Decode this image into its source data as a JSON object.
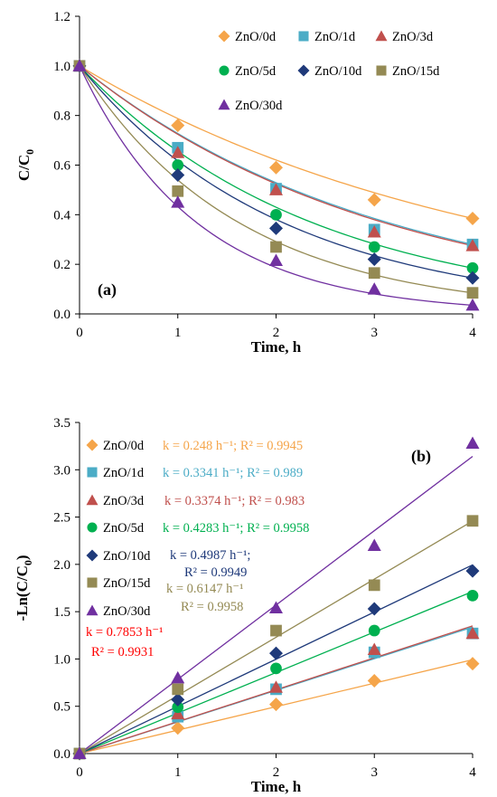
{
  "chart_data": [
    {
      "type": "scatter",
      "panel_label": "(a)",
      "xlabel": "Time, h",
      "ylabel": "C/C",
      "ylabel_sub": "0",
      "xlim": [
        0,
        4
      ],
      "ylim": [
        0,
        1.2
      ],
      "xticks": [
        "0",
        "1",
        "2",
        "3",
        "4"
      ],
      "yticks": [
        "0.0",
        "0.2",
        "0.4",
        "0.6",
        "0.8",
        "1.0",
        "1.2"
      ],
      "legend": "top-right",
      "series": [
        {
          "name": "ZnO/0d",
          "color": "#f5a54a",
          "marker": "diamond",
          "x": [
            0,
            1,
            2,
            3,
            4
          ],
          "y": [
            1.0,
            0.76,
            0.59,
            0.46,
            0.385
          ]
        },
        {
          "name": "ZnO/1d",
          "color": "#4bacc6",
          "marker": "square",
          "x": [
            0,
            1,
            2,
            3,
            4
          ],
          "y": [
            1.0,
            0.67,
            0.505,
            0.34,
            0.28
          ]
        },
        {
          "name": "ZnO/3d",
          "color": "#c0504d",
          "marker": "triangle",
          "x": [
            0,
            1,
            2,
            3,
            4
          ],
          "y": [
            1.0,
            0.65,
            0.5,
            0.33,
            0.275
          ]
        },
        {
          "name": "ZnO/5d",
          "color": "#00b050",
          "marker": "circle",
          "x": [
            0,
            1,
            2,
            3,
            4
          ],
          "y": [
            1.0,
            0.6,
            0.4,
            0.27,
            0.185
          ]
        },
        {
          "name": "ZnO/10d",
          "color": "#1f3a7a",
          "marker": "diamond",
          "x": [
            0,
            1,
            2,
            3,
            4
          ],
          "y": [
            1.0,
            0.56,
            0.345,
            0.22,
            0.145
          ]
        },
        {
          "name": "ZnO/15d",
          "color": "#948a54",
          "marker": "square",
          "x": [
            0,
            1,
            2,
            3,
            4
          ],
          "y": [
            1.0,
            0.495,
            0.27,
            0.165,
            0.085
          ]
        },
        {
          "name": "ZnO/30d",
          "color": "#7030a0",
          "marker": "triangle",
          "x": [
            0,
            1,
            2,
            3,
            4
          ],
          "y": [
            1.0,
            0.45,
            0.215,
            0.1,
            0.035
          ]
        }
      ]
    },
    {
      "type": "scatter",
      "panel_label": "(b)",
      "xlabel": "Time, h",
      "ylabel": "-Ln(C/C",
      "ylabel_sub": "0",
      "ylabel_end": ")",
      "xlim": [
        0,
        4
      ],
      "ylim": [
        0,
        3.5
      ],
      "xticks": [
        "0",
        "1",
        "2",
        "3",
        "4"
      ],
      "yticks": [
        "0.0",
        "0.5",
        "1.0",
        "1.5",
        "2.0",
        "2.5",
        "3.0",
        "3.5"
      ],
      "legend": "left",
      "series": [
        {
          "name": "ZnO/0d",
          "color": "#f5a54a",
          "marker": "diamond",
          "x": [
            0,
            1,
            2,
            3,
            4
          ],
          "y": [
            0,
            0.27,
            0.52,
            0.77,
            0.95
          ],
          "slope": 0.248,
          "annotation": [
            "k = 0.248 h⁻¹; R² = 0.9945"
          ]
        },
        {
          "name": "ZnO/1d",
          "color": "#4bacc6",
          "marker": "square",
          "x": [
            0,
            1,
            2,
            3,
            4
          ],
          "y": [
            0,
            0.39,
            0.68,
            1.07,
            1.27
          ],
          "slope": 0.3341,
          "annotation": [
            "k = 0.3341 h⁻¹; R² = 0.989"
          ]
        },
        {
          "name": "ZnO/3d",
          "color": "#c0504d",
          "marker": "triangle",
          "x": [
            0,
            1,
            2,
            3,
            4
          ],
          "y": [
            0,
            0.42,
            0.7,
            1.1,
            1.27
          ],
          "slope": 0.3374,
          "annotation": [
            "k = 0.3374 h⁻¹; R² = 0.983"
          ]
        },
        {
          "name": "ZnO/5d",
          "color": "#00b050",
          "marker": "circle",
          "x": [
            0,
            1,
            2,
            3,
            4
          ],
          "y": [
            0,
            0.49,
            0.9,
            1.3,
            1.67
          ],
          "slope": 0.4283,
          "annotation": [
            "k = 0.4283 h⁻¹; R² = 0.9958"
          ]
        },
        {
          "name": "ZnO/10d",
          "color": "#1f3a7a",
          "marker": "diamond",
          "x": [
            0,
            1,
            2,
            3,
            4
          ],
          "y": [
            0,
            0.57,
            1.06,
            1.53,
            1.93
          ],
          "slope": 0.4987,
          "annotation": [
            "k = 0.4987 h⁻¹;",
            "R² = 0.9949"
          ]
        },
        {
          "name": "ZnO/15d",
          "color": "#948a54",
          "marker": "square",
          "x": [
            0,
            1,
            2,
            3,
            4
          ],
          "y": [
            0,
            0.68,
            1.3,
            1.78,
            2.46
          ],
          "slope": 0.6147,
          "annotation": [
            "k = 0.6147 h⁻¹",
            "R² = 0.9958"
          ]
        },
        {
          "name": "ZnO/30d",
          "color": "#7030a0",
          "marker": "triangle",
          "x": [
            0,
            1,
            2,
            3,
            4
          ],
          "y": [
            0,
            0.8,
            1.54,
            2.2,
            3.28
          ],
          "slope": 0.7853,
          "annotation": [
            "k = 0.7853 h⁻¹",
            "R² = 0.9931"
          ],
          "annotation_color": "#ff0000"
        }
      ]
    }
  ]
}
